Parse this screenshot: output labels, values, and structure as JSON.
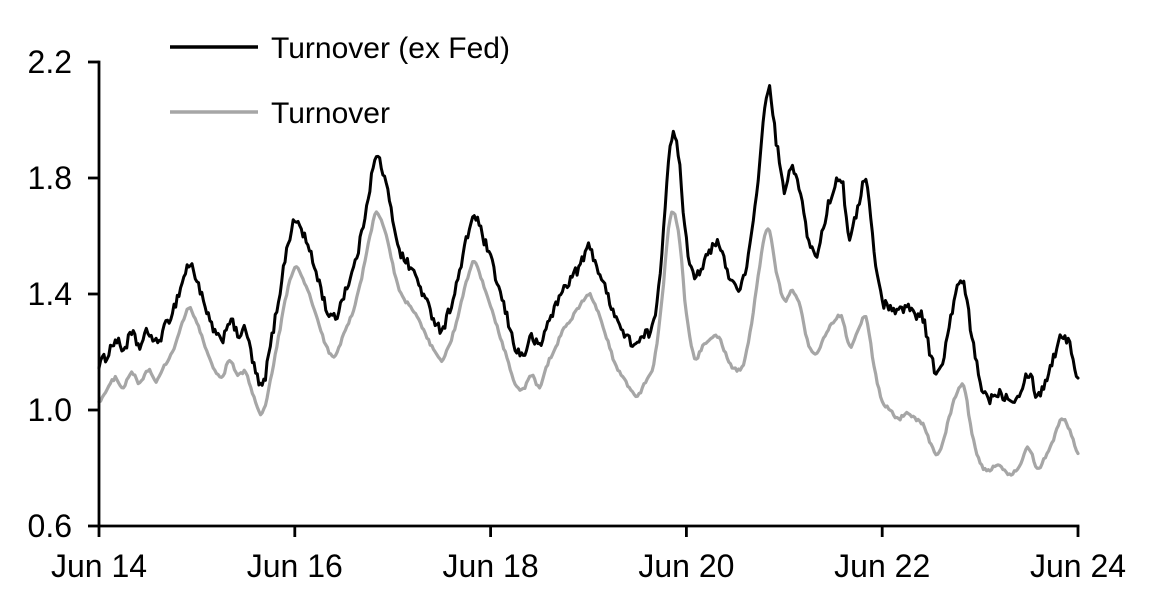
{
  "chart_data": {
    "type": "line",
    "title": "",
    "x_unit": "months since Jun 2014 (monthly samples, Jun 2014 - Jun 2024)",
    "xlim_months": [
      0,
      120
    ],
    "x_axis": {
      "tick_labels": [
        "Jun 14",
        "Jun 16",
        "Jun 18",
        "Jun 20",
        "Jun 22",
        "Jun 24"
      ],
      "tick_positions_months": [
        0,
        24,
        48,
        72,
        96,
        120
      ]
    },
    "y_axis": {
      "tick_labels": [
        "0.6",
        "1.0",
        "1.4",
        "1.8",
        "2.2"
      ],
      "tick_values": [
        0.6,
        1.0,
        1.4,
        1.8,
        2.2
      ],
      "range": [
        0.6,
        2.2
      ]
    },
    "grid": false,
    "legend_position": "top-left-inside",
    "axis_color": "#000000",
    "series": [
      {
        "name": "Turnover (ex Fed)",
        "color": "#000000",
        "line_width": 3.0,
        "jitter": 0.018,
        "values": [
          1.16,
          1.19,
          1.24,
          1.21,
          1.26,
          1.22,
          1.27,
          1.23,
          1.28,
          1.34,
          1.42,
          1.5,
          1.45,
          1.35,
          1.28,
          1.24,
          1.31,
          1.26,
          1.27,
          1.15,
          1.08,
          1.22,
          1.38,
          1.55,
          1.65,
          1.61,
          1.53,
          1.44,
          1.34,
          1.32,
          1.4,
          1.47,
          1.58,
          1.74,
          1.87,
          1.8,
          1.66,
          1.54,
          1.5,
          1.45,
          1.38,
          1.32,
          1.28,
          1.35,
          1.45,
          1.58,
          1.67,
          1.6,
          1.52,
          1.42,
          1.32,
          1.22,
          1.19,
          1.25,
          1.22,
          1.3,
          1.36,
          1.42,
          1.46,
          1.5,
          1.56,
          1.5,
          1.42,
          1.35,
          1.28,
          1.24,
          1.23,
          1.26,
          1.3,
          1.55,
          1.92,
          1.88,
          1.58,
          1.47,
          1.5,
          1.55,
          1.57,
          1.48,
          1.43,
          1.45,
          1.6,
          1.86,
          2.11,
          1.93,
          1.76,
          1.84,
          1.74,
          1.58,
          1.54,
          1.66,
          1.76,
          1.8,
          1.6,
          1.7,
          1.79,
          1.55,
          1.38,
          1.36,
          1.34,
          1.36,
          1.33,
          1.32,
          1.18,
          1.13,
          1.25,
          1.4,
          1.43,
          1.25,
          1.1,
          1.04,
          1.06,
          1.05,
          1.04,
          1.07,
          1.13,
          1.05,
          1.1,
          1.18,
          1.26,
          1.22,
          1.11
        ]
      },
      {
        "name": "Turnover",
        "color": "#a6a6a6",
        "line_width": 3.2,
        "jitter": 0.006,
        "values": [
          1.03,
          1.07,
          1.11,
          1.08,
          1.13,
          1.09,
          1.14,
          1.1,
          1.15,
          1.2,
          1.28,
          1.35,
          1.3,
          1.22,
          1.15,
          1.11,
          1.17,
          1.12,
          1.13,
          1.04,
          0.99,
          1.1,
          1.25,
          1.4,
          1.49,
          1.45,
          1.38,
          1.29,
          1.21,
          1.19,
          1.26,
          1.33,
          1.43,
          1.57,
          1.68,
          1.62,
          1.5,
          1.4,
          1.36,
          1.32,
          1.26,
          1.21,
          1.17,
          1.23,
          1.32,
          1.44,
          1.51,
          1.44,
          1.36,
          1.27,
          1.18,
          1.09,
          1.07,
          1.12,
          1.08,
          1.16,
          1.22,
          1.28,
          1.32,
          1.36,
          1.4,
          1.35,
          1.27,
          1.18,
          1.12,
          1.08,
          1.05,
          1.1,
          1.16,
          1.38,
          1.66,
          1.62,
          1.33,
          1.18,
          1.22,
          1.25,
          1.25,
          1.18,
          1.14,
          1.16,
          1.3,
          1.5,
          1.63,
          1.48,
          1.38,
          1.41,
          1.35,
          1.22,
          1.2,
          1.26,
          1.3,
          1.32,
          1.22,
          1.27,
          1.32,
          1.15,
          1.03,
          1.0,
          0.97,
          0.99,
          0.97,
          0.95,
          0.88,
          0.85,
          0.95,
          1.05,
          1.08,
          0.92,
          0.82,
          0.79,
          0.81,
          0.79,
          0.78,
          0.82,
          0.87,
          0.8,
          0.84,
          0.9,
          0.97,
          0.93,
          0.85
        ]
      }
    ]
  }
}
